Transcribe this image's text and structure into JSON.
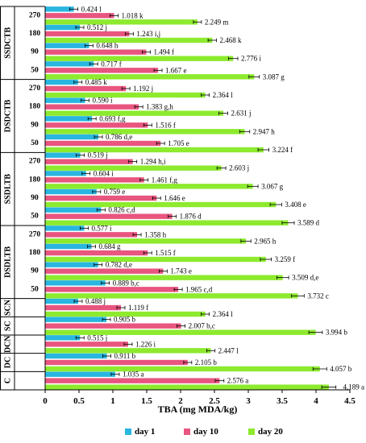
{
  "chart_data": {
    "type": "bar",
    "orientation": "horizontal",
    "xlabel": "TBA (mg MDA/kg)",
    "xlim": [
      0,
      4.5
    ],
    "xticks": [
      "0",
      "0.5",
      "1",
      "1.5",
      "2",
      "2.5",
      "3",
      "3.5",
      "4",
      "4.5"
    ],
    "legend_position": "bottom",
    "series": [
      {
        "name": "day 1",
        "color": "#29B6E0"
      },
      {
        "name": "day 10",
        "color": "#E8557F"
      },
      {
        "name": "day 20",
        "color": "#8DEA2E"
      }
    ],
    "groups": [
      {
        "label": "SSDCTB",
        "rows": [
          {
            "sub": "270",
            "bars": [
              {
                "v": 0.424,
                "label": "0.424 l"
              },
              {
                "v": 1.018,
                "label": "1.018 k"
              },
              {
                "v": 2.249,
                "label": "2.249 m"
              }
            ]
          },
          {
            "sub": "180",
            "bars": [
              {
                "v": 0.512,
                "label": "0.512 j"
              },
              {
                "v": 1.243,
                "label": "1.243 i,j"
              },
              {
                "v": 2.468,
                "label": "2.468 k"
              }
            ]
          },
          {
            "sub": "90",
            "bars": [
              {
                "v": 0.648,
                "label": "0.648 h"
              },
              {
                "v": 1.494,
                "label": "1.494 f"
              },
              {
                "v": 2.776,
                "label": "2.776 i"
              }
            ]
          },
          {
            "sub": "50",
            "bars": [
              {
                "v": 0.717,
                "label": "0.717 f"
              },
              {
                "v": 1.667,
                "label": "1.667 e"
              },
              {
                "v": 3.087,
                "label": "3.087 g"
              }
            ]
          }
        ]
      },
      {
        "label": "DSDCTB",
        "rows": [
          {
            "sub": "270",
            "bars": [
              {
                "v": 0.485,
                "label": "0.485 k"
              },
              {
                "v": 1.192,
                "label": "1.192 j"
              },
              {
                "v": 2.364,
                "label": "2.364 l"
              }
            ]
          },
          {
            "sub": "180",
            "bars": [
              {
                "v": 0.59,
                "label": "0.590 i"
              },
              {
                "v": 1.383,
                "label": "1.383 g,h"
              },
              {
                "v": 2.631,
                "label": "2.631 j"
              }
            ]
          },
          {
            "sub": "90",
            "bars": [
              {
                "v": 0.693,
                "label": "0.693 f,g"
              },
              {
                "v": 1.516,
                "label": "1.516 f"
              },
              {
                "v": 2.947,
                "label": "2.947 h"
              }
            ]
          },
          {
            "sub": "50",
            "bars": [
              {
                "v": 0.786,
                "label": "0.786 d,e"
              },
              {
                "v": 1.705,
                "label": "1.705 e"
              },
              {
                "v": 3.224,
                "label": "3.224 f"
              }
            ]
          }
        ]
      },
      {
        "label": "SSDLTB",
        "rows": [
          {
            "sub": "270",
            "bars": [
              {
                "v": 0.519,
                "label": "0.519 j"
              },
              {
                "v": 1.294,
                "label": "1.294 h,i"
              },
              {
                "v": 2.603,
                "label": "2.603 j"
              }
            ]
          },
          {
            "sub": "180",
            "bars": [
              {
                "v": 0.604,
                "label": "0.604 i"
              },
              {
                "v": 1.461,
                "label": "1.461 f,g"
              },
              {
                "v": 3.067,
                "label": "3.067 g"
              }
            ]
          },
          {
            "sub": "90",
            "bars": [
              {
                "v": 0.759,
                "label": "0.759 e"
              },
              {
                "v": 1.646,
                "label": "1.646 e"
              },
              {
                "v": 3.408,
                "label": "3.408 e"
              }
            ]
          },
          {
            "sub": "50",
            "bars": [
              {
                "v": 0.826,
                "label": "0.826 c,d"
              },
              {
                "v": 1.876,
                "label": "1.876 d"
              },
              {
                "v": 3.589,
                "label": "3.589 d"
              }
            ]
          }
        ]
      },
      {
        "label": "DSDLTB",
        "rows": [
          {
            "sub": "270",
            "bars": [
              {
                "v": 0.577,
                "label": "0.577 i"
              },
              {
                "v": 1.358,
                "label": "1.358 h"
              },
              {
                "v": 2.965,
                "label": "2.965 h"
              }
            ]
          },
          {
            "sub": "180",
            "bars": [
              {
                "v": 0.684,
                "label": "0.684 g"
              },
              {
                "v": 1.515,
                "label": "1.515 f"
              },
              {
                "v": 3.259,
                "label": "3.259 f"
              }
            ]
          },
          {
            "sub": "90",
            "bars": [
              {
                "v": 0.782,
                "label": "0.782 d,e"
              },
              {
                "v": 1.743,
                "label": "1.743 e"
              },
              {
                "v": 3.509,
                "label": "3.509 d,e"
              }
            ]
          },
          {
            "sub": "50",
            "bars": [
              {
                "v": 0.889,
                "label": "0.889 b,c"
              },
              {
                "v": 1.965,
                "label": "1.965 c,d"
              },
              {
                "v": 3.732,
                "label": "3.732 c"
              }
            ]
          }
        ]
      },
      {
        "label": "SCN",
        "rows": [
          {
            "sub": "",
            "bars": [
              {
                "v": 0.488,
                "label": "0.488 j"
              },
              {
                "v": 1.119,
                "label": "1.119 f"
              },
              {
                "v": 2.364,
                "label": "2.364 l"
              }
            ]
          }
        ]
      },
      {
        "label": "SC",
        "rows": [
          {
            "sub": "",
            "bars": [
              {
                "v": 0.905,
                "label": "0.905 b"
              },
              {
                "v": 2.007,
                "label": "2.007 b,c"
              },
              {
                "v": 3.994,
                "label": "3.994 b"
              }
            ]
          }
        ]
      },
      {
        "label": "DCN",
        "rows": [
          {
            "sub": "",
            "bars": [
              {
                "v": 0.515,
                "label": "0.515 j"
              },
              {
                "v": 1.226,
                "label": "1.226 i"
              },
              {
                "v": 2.447,
                "label": "2.447 l"
              }
            ]
          }
        ]
      },
      {
        "label": "DC",
        "rows": [
          {
            "sub": "",
            "bars": [
              {
                "v": 0.911,
                "label": "0.911 b"
              },
              {
                "v": 2.105,
                "label": "2.105 b"
              },
              {
                "v": 4.057,
                "label": "4.057 b"
              }
            ]
          }
        ]
      },
      {
        "label": "C",
        "rows": [
          {
            "sub": "",
            "bars": [
              {
                "v": 1.035,
                "label": "1.035 a"
              },
              {
                "v": 2.576,
                "label": "2.576 a"
              },
              {
                "v": 4.189,
                "label": "4.189 a"
              }
            ]
          }
        ]
      }
    ]
  }
}
